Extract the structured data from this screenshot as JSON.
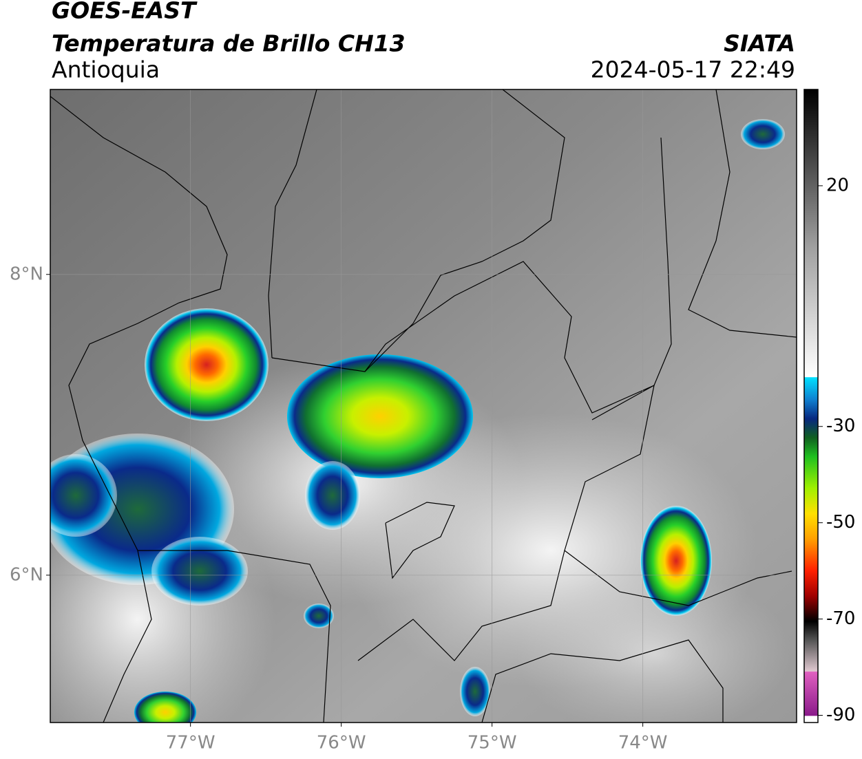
{
  "header": {
    "satellite": "GOES-EAST",
    "product": "Temperatura de Brillo CH13",
    "region": "Antioquia",
    "source": "SIATA",
    "datetime": "2024-05-17 22:49"
  },
  "map": {
    "lon_range": [
      -77.93,
      -72.98
    ],
    "lat_range": [
      5.02,
      9.23
    ],
    "lon_ticks": [
      {
        "value": -77,
        "label": "77°W"
      },
      {
        "value": -76,
        "label": "76°W"
      },
      {
        "value": -75,
        "label": "75°W"
      },
      {
        "value": -74,
        "label": "74°W"
      }
    ],
    "lat_ticks": [
      {
        "value": 8,
        "label": "8°N"
      },
      {
        "value": 6,
        "label": "6°N"
      }
    ],
    "grid": true
  },
  "colorbar": {
    "range": [
      -91.5,
      40
    ],
    "ticks": [
      20,
      -30,
      -50,
      -70,
      -90
    ]
  }
}
